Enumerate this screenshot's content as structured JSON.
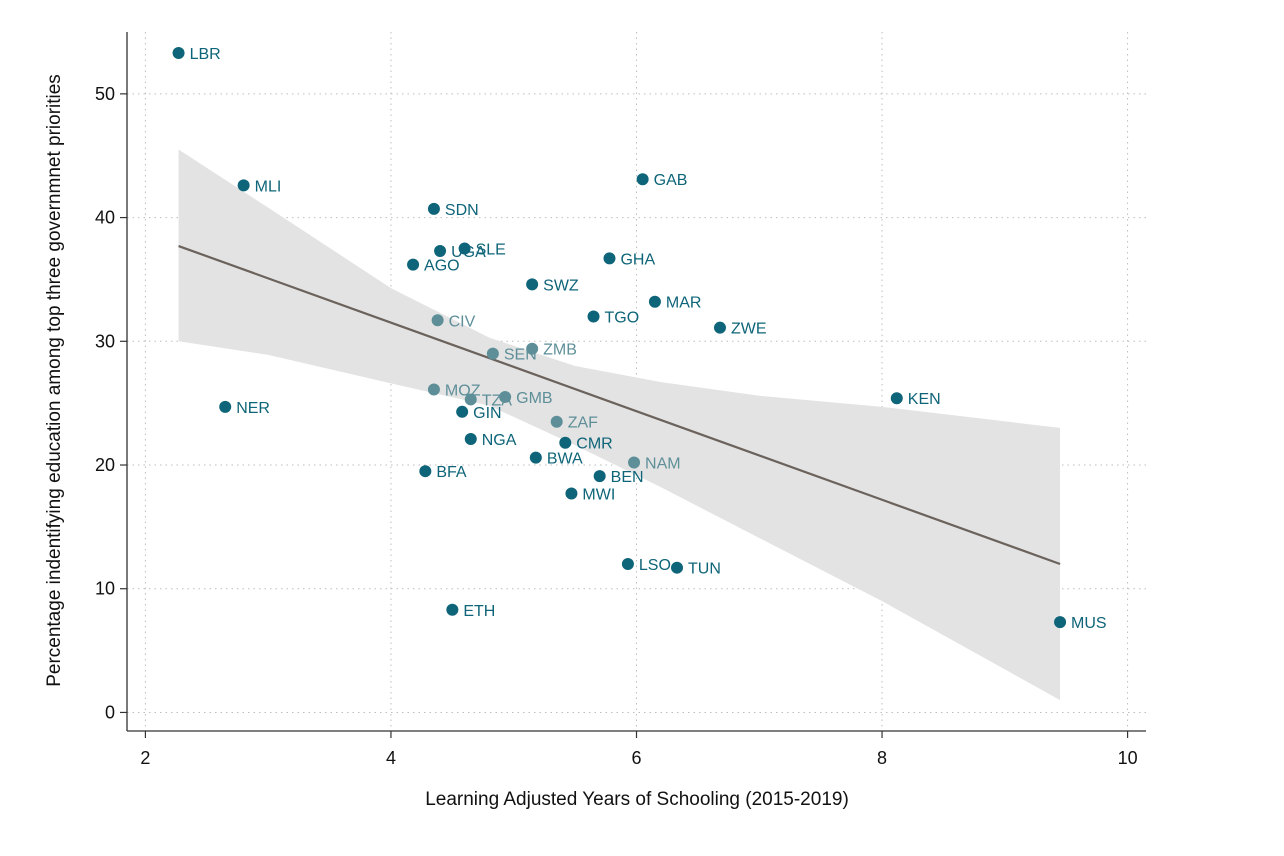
{
  "chart_data": {
    "type": "scatter",
    "title": "",
    "xlabel": "Learning Adjusted Years of Schooling (2015-2019)",
    "ylabel": "Percentage indentifying education among top three governmnet priorities",
    "xlim": [
      1.85,
      10.15
    ],
    "ylim": [
      -1.5,
      55
    ],
    "x_ticks": [
      2,
      4,
      6,
      8,
      10
    ],
    "y_ticks": [
      0,
      10,
      20,
      30,
      40,
      50
    ],
    "grid": true,
    "colors": {
      "point": "#0e6478",
      "point_light": "#5e8f99",
      "fit_line": "#6b625c",
      "band": "#e3e3e3",
      "grid": "#bdbdbd"
    },
    "fit": {
      "x": [
        2.27,
        9.45
      ],
      "y": [
        37.7,
        12.0
      ]
    },
    "confidence_band": {
      "x": [
        2.27,
        3.0,
        4.0,
        4.8,
        5.5,
        6.2,
        7.0,
        8.0,
        9.45
      ],
      "upper": [
        45.5,
        40.8,
        34.3,
        30.3,
        28.0,
        26.7,
        25.6,
        24.7,
        23.0
      ],
      "lower": [
        30.0,
        28.9,
        26.6,
        24.8,
        21.6,
        18.2,
        14.1,
        9.0,
        1.0
      ]
    },
    "points": [
      {
        "label": "LBR",
        "x": 2.27,
        "y": 53.3
      },
      {
        "label": "MLI",
        "x": 2.8,
        "y": 42.6
      },
      {
        "label": "NER",
        "x": 2.65,
        "y": 24.7
      },
      {
        "label": "SDN",
        "x": 4.35,
        "y": 40.7
      },
      {
        "label": "UGA",
        "x": 4.4,
        "y": 37.3
      },
      {
        "label": "SLE",
        "x": 4.6,
        "y": 37.5
      },
      {
        "label": "AGO",
        "x": 4.18,
        "y": 36.2
      },
      {
        "label": "SWZ",
        "x": 5.15,
        "y": 34.6
      },
      {
        "label": "GAB",
        "x": 6.05,
        "y": 43.1
      },
      {
        "label": "GHA",
        "x": 5.78,
        "y": 36.7
      },
      {
        "label": "MAR",
        "x": 6.15,
        "y": 33.2
      },
      {
        "label": "TGO",
        "x": 5.65,
        "y": 32.0
      },
      {
        "label": "ZWE",
        "x": 6.68,
        "y": 31.1
      },
      {
        "label": "CIV",
        "x": 4.38,
        "y": 31.7,
        "light": true
      },
      {
        "label": "SEN",
        "x": 4.83,
        "y": 29.0,
        "light": true
      },
      {
        "label": "ZMB",
        "x": 5.15,
        "y": 29.4,
        "light": true
      },
      {
        "label": "KEN",
        "x": 8.12,
        "y": 25.4
      },
      {
        "label": "MOZ",
        "x": 4.35,
        "y": 26.1,
        "light": true
      },
      {
        "label": "TZA",
        "x": 4.65,
        "y": 25.3,
        "light": true
      },
      {
        "label": "GMB",
        "x": 4.93,
        "y": 25.5,
        "light": true
      },
      {
        "label": "GIN",
        "x": 4.58,
        "y": 24.3
      },
      {
        "label": "ZAF",
        "x": 5.35,
        "y": 23.5,
        "light": true
      },
      {
        "label": "NGA",
        "x": 4.65,
        "y": 22.1
      },
      {
        "label": "CMR",
        "x": 5.42,
        "y": 21.8
      },
      {
        "label": "BWA",
        "x": 5.18,
        "y": 20.6
      },
      {
        "label": "NAM",
        "x": 5.98,
        "y": 20.2,
        "light": true
      },
      {
        "label": "BFA",
        "x": 4.28,
        "y": 19.5
      },
      {
        "label": "BEN",
        "x": 5.7,
        "y": 19.1
      },
      {
        "label": "MWI",
        "x": 5.47,
        "y": 17.7
      },
      {
        "label": "LSO",
        "x": 5.93,
        "y": 12.0
      },
      {
        "label": "TUN",
        "x": 6.33,
        "y": 11.7
      },
      {
        "label": "ETH",
        "x": 4.5,
        "y": 8.3
      },
      {
        "label": "MUS",
        "x": 9.45,
        "y": 7.3
      }
    ]
  }
}
